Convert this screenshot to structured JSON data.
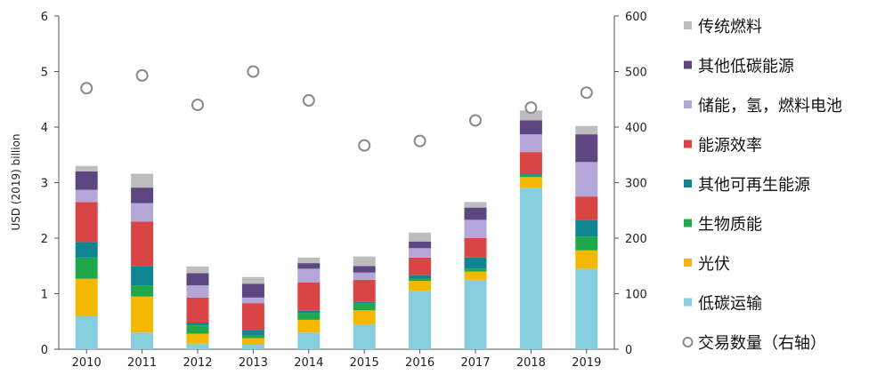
{
  "chart_data": {
    "type": "bar",
    "stacked": true,
    "title": "",
    "xlabel": "",
    "ylabel": "USD (2019) billion",
    "ylim": [
      0,
      6
    ],
    "y_ticks": [
      "0",
      "1",
      "2",
      "3",
      "4",
      "5",
      "6"
    ],
    "y2lim": [
      0,
      600
    ],
    "y2_ticks": [
      "0",
      "100",
      "200",
      "300",
      "400",
      "500",
      "600"
    ],
    "grid": false,
    "legend_position": "right",
    "categories": [
      "2010",
      "2011",
      "2012",
      "2013",
      "2014",
      "2015",
      "2016",
      "2017",
      "2018",
      "2019"
    ],
    "series": [
      {
        "name": "低碳运输",
        "color": "#86CEDD",
        "values": [
          0.6,
          0.3,
          0.1,
          0.08,
          0.3,
          0.45,
          1.05,
          1.25,
          2.9,
          1.45
        ]
      },
      {
        "name": "光伏",
        "color": "#F5B800",
        "values": [
          0.67,
          0.65,
          0.18,
          0.12,
          0.23,
          0.25,
          0.18,
          0.15,
          0.2,
          0.33
        ]
      },
      {
        "name": "生物质能",
        "color": "#1EA84A",
        "values": [
          0.38,
          0.2,
          0.15,
          0.05,
          0.12,
          0.13,
          0.05,
          0.05,
          0.03,
          0.25
        ]
      },
      {
        "name": "其他可再生能源",
        "color": "#0E8590",
        "values": [
          0.28,
          0.35,
          0.05,
          0.1,
          0.05,
          0.02,
          0.05,
          0.2,
          0.02,
          0.3
        ]
      },
      {
        "name": "能源效率",
        "color": "#D94545",
        "values": [
          0.72,
          0.8,
          0.45,
          0.48,
          0.5,
          0.4,
          0.32,
          0.35,
          0.4,
          0.42
        ]
      },
      {
        "name": "储能，氢，燃料电池",
        "color": "#B4A6D6",
        "values": [
          0.22,
          0.33,
          0.22,
          0.1,
          0.25,
          0.13,
          0.17,
          0.33,
          0.32,
          0.62
        ]
      },
      {
        "name": "其他低碳能源",
        "color": "#5C4780",
        "values": [
          0.33,
          0.28,
          0.22,
          0.25,
          0.1,
          0.12,
          0.12,
          0.22,
          0.25,
          0.5
        ]
      },
      {
        "name": "传统燃料",
        "color": "#BDBDBD",
        "values": [
          0.1,
          0.25,
          0.12,
          0.12,
          0.1,
          0.17,
          0.16,
          0.1,
          0.18,
          0.15
        ]
      }
    ],
    "secondary_series": {
      "name": "交易数量（右轴）",
      "type": "scatter",
      "axis": "right",
      "values": [
        470,
        493,
        440,
        500,
        448,
        367,
        375,
        412,
        435,
        462
      ]
    }
  }
}
